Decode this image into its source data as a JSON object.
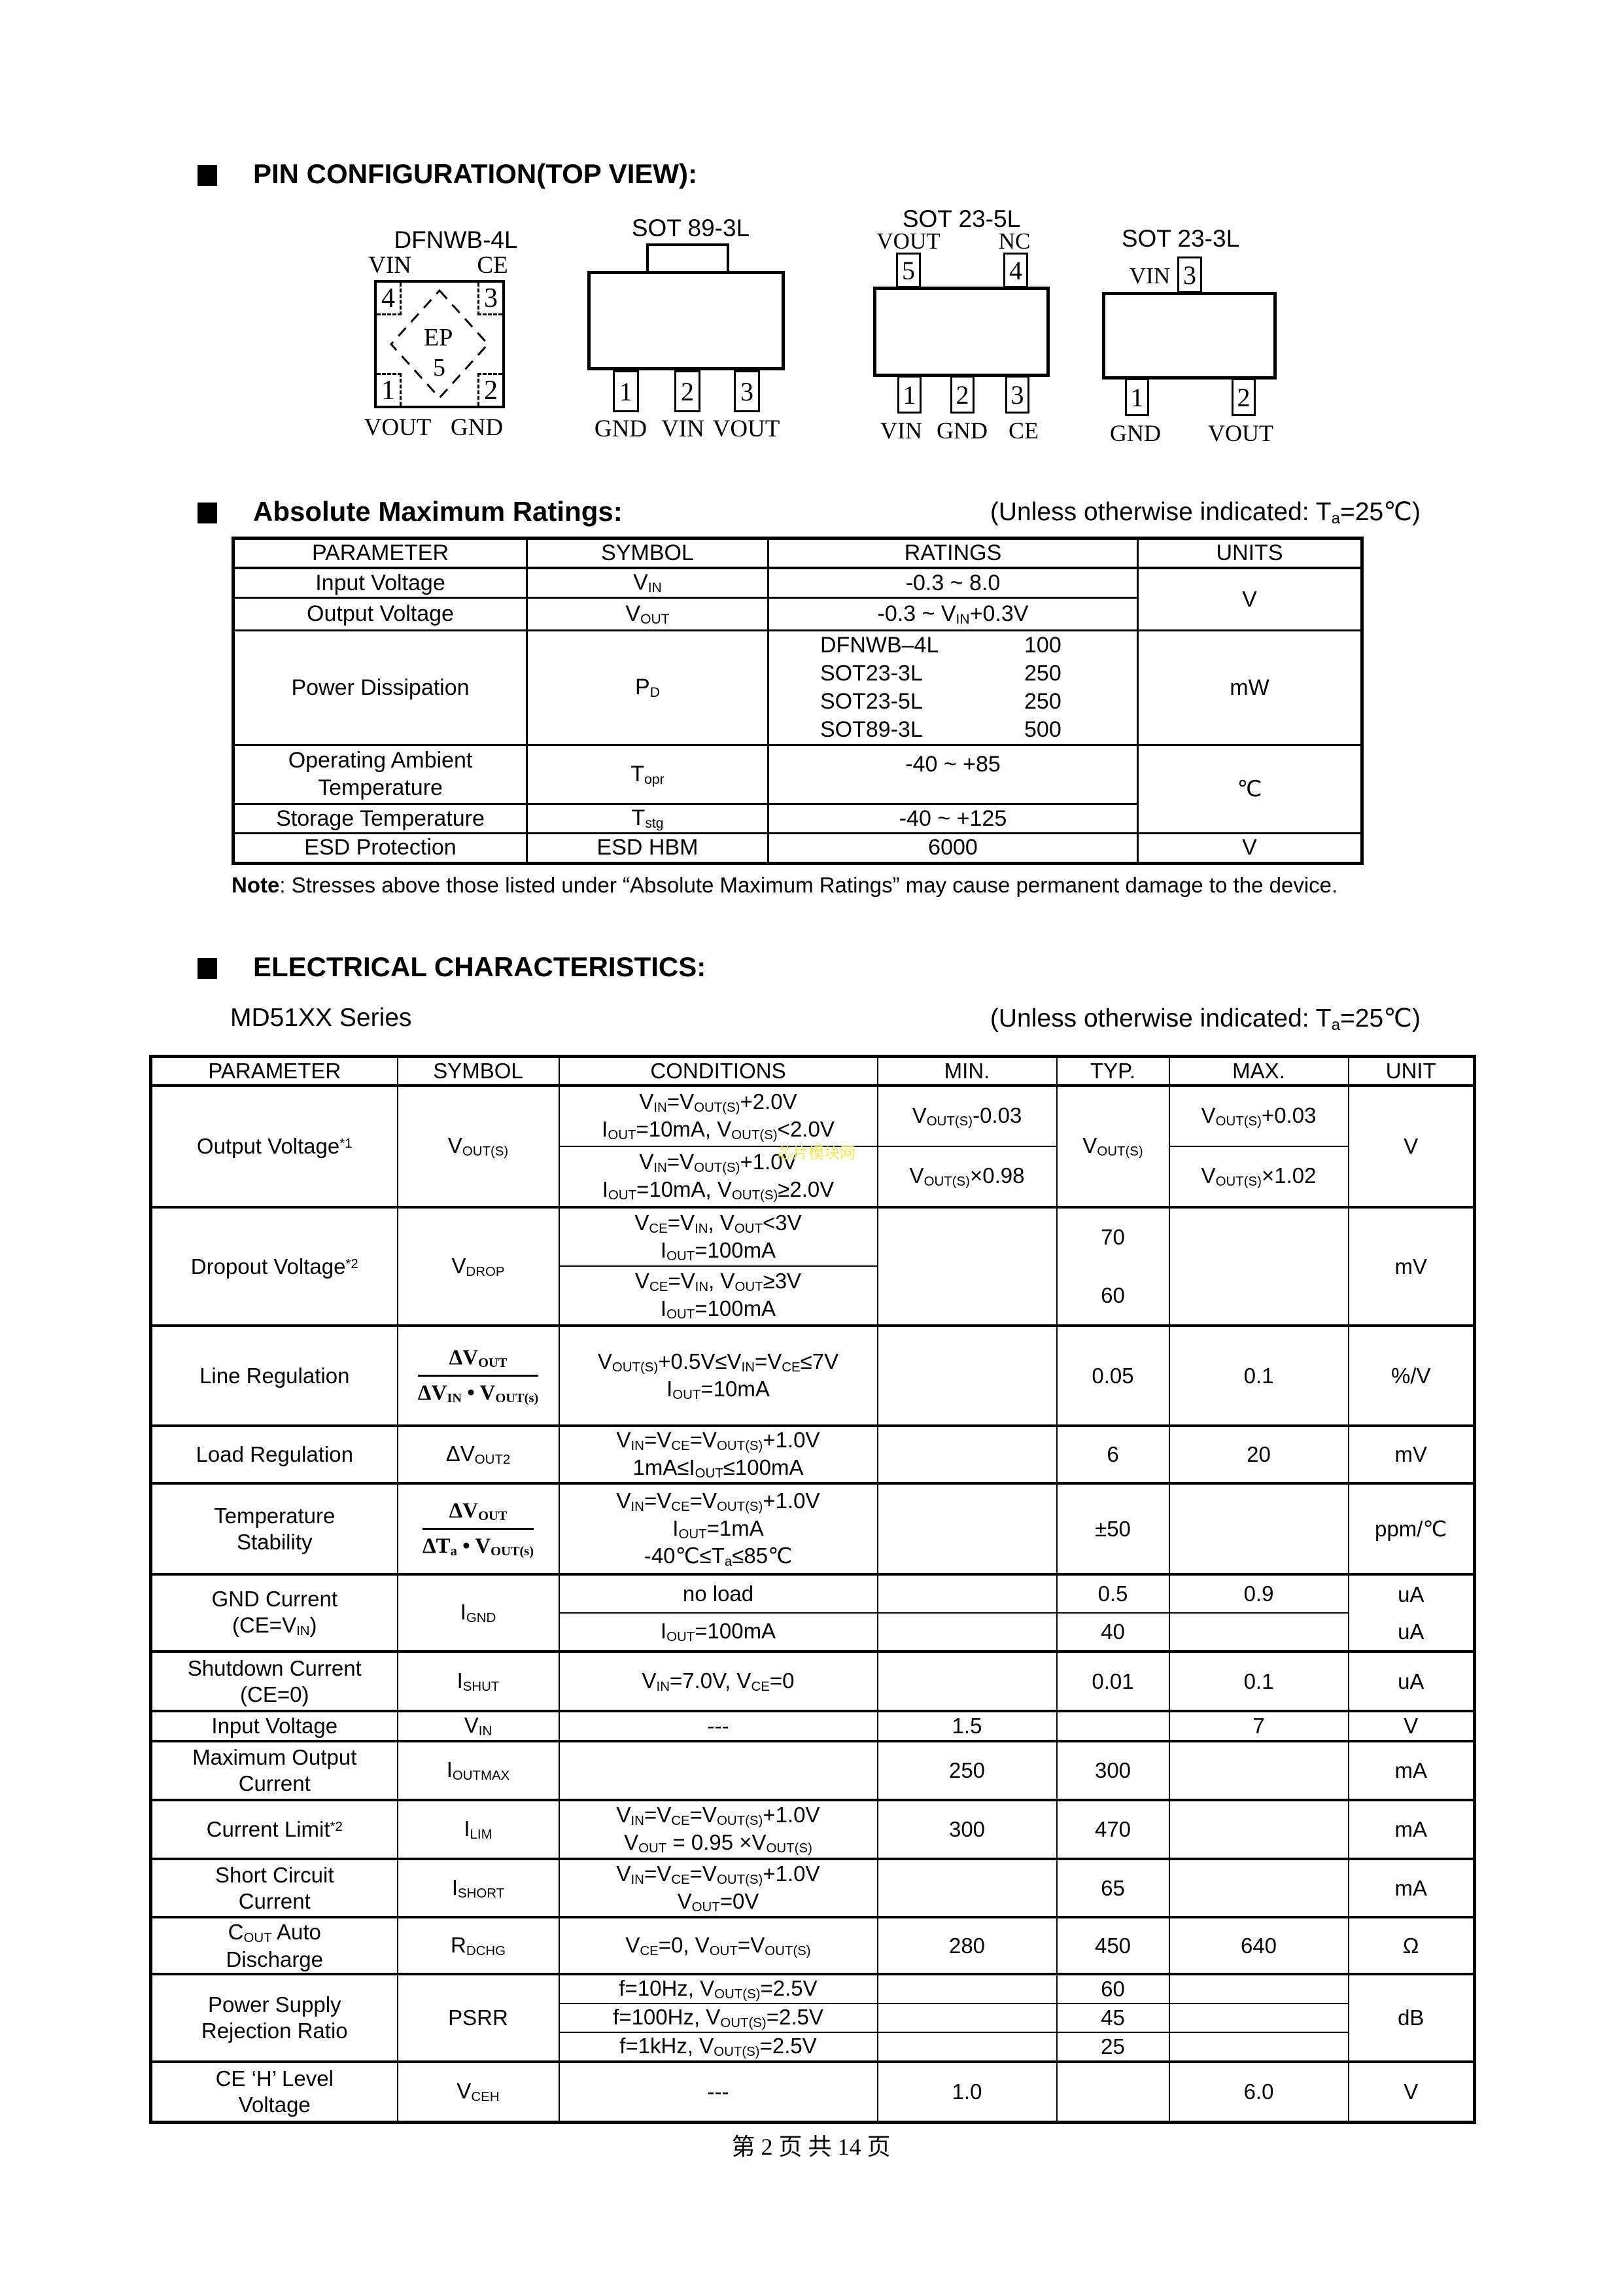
{
  "pin_config": {
    "heading": "PIN CONFIGURATION(TOP VIEW):",
    "dfnwb": {
      "title": "DFNWB-4L",
      "top_left_label": "VIN",
      "top_right_label": "CE",
      "bottom_left_label": "VOUT",
      "bottom_right_label": "GND",
      "pin_tl": "4",
      "pin_tr": "3",
      "pin_bl": "1",
      "pin_br": "2",
      "ep_label": "EP",
      "ep_pin": "5"
    },
    "sot89": {
      "title": "SOT 89-3L",
      "pins": [
        {
          "num": "1",
          "label": "GND"
        },
        {
          "num": "2",
          "label": "VIN"
        },
        {
          "num": "3",
          "label": "VOUT"
        }
      ]
    },
    "sot235": {
      "title": "SOT 23-5L",
      "top_pins": [
        {
          "num": "5",
          "label": "VOUT"
        },
        {
          "num": "4",
          "label": "NC"
        }
      ],
      "bottom_pins": [
        {
          "num": "1",
          "label": "VIN"
        },
        {
          "num": "2",
          "label": "GND"
        },
        {
          "num": "3",
          "label": "CE"
        }
      ]
    },
    "sot233": {
      "title": "SOT 23-3L",
      "top_pins": [
        {
          "num": "3",
          "label": "VIN"
        }
      ],
      "bottom_pins": [
        {
          "num": "1",
          "label": "GND"
        },
        {
          "num": "2",
          "label": "VOUT"
        }
      ]
    }
  },
  "abs_max": {
    "heading": "Absolute Maximum Ratings:",
    "condition": "(Unless otherwise indicated: T_{a}=25℃)",
    "headers": [
      "PARAMETER",
      "SYMBOL",
      "RATINGS",
      "UNITS"
    ],
    "input_voltage": {
      "param": "Input Voltage",
      "symbol": "V_{IN}",
      "rating": "-0.3 ~ 8.0"
    },
    "output_voltage": {
      "param": "Output Voltage",
      "symbol": "V_{OUT}",
      "rating": "-0.3 ~ V_{IN}+0.3V"
    },
    "voltage_unit": "V",
    "power_dissipation": {
      "param": "Power Dissipation",
      "symbol": "P_{D}",
      "unit": "mW",
      "ratings": [
        {
          "pkg": "DFNWB–4L",
          "val": "100"
        },
        {
          "pkg": "SOT23-3L",
          "val": "250"
        },
        {
          "pkg": "SOT23-5L",
          "val": "250"
        },
        {
          "pkg": "SOT89-3L",
          "val": "500"
        }
      ]
    },
    "operating_temp": {
      "param": "Operating Ambient\nTemperature",
      "symbol": "T_{opr}",
      "rating": "-40 ~ +85"
    },
    "storage_temp": {
      "param": "Storage Temperature",
      "symbol": "T_{stg}",
      "rating": "-40 ~ +125"
    },
    "temp_unit": "℃",
    "esd": {
      "param": "ESD Protection",
      "symbol": "ESD HBM",
      "rating": "6000",
      "unit": "V"
    },
    "note_label": "Note",
    "note_text": ": Stresses above those listed under “Absolute Maximum Ratings” may cause permanent damage to the device."
  },
  "elec_char": {
    "heading": "ELECTRICAL CHARACTERISTICS:",
    "series": "MD51XX Series",
    "condition": "(Unless otherwise indicated: T_{a}=25℃)",
    "headers": [
      "PARAMETER",
      "SYMBOL",
      "CONDITIONS",
      "MIN.",
      "TYP.",
      "MAX.",
      "UNIT"
    ],
    "output_voltage": {
      "param": "Output Voltage^{*1}",
      "symbol": "V_{OUT(S)}",
      "typ": "V_{OUT(S)}",
      "unit": "V",
      "sub": [
        {
          "cond": "V_{IN}=V_{OUT(S)}+2.0V\nI_{OUT}=10mA, V_{OUT(S)}<2.0V",
          "min": "V_{OUT(S)}-0.03",
          "max": "V_{OUT(S)}+0.03"
        },
        {
          "cond": "V_{IN}=V_{OUT(S)}+1.0V\nI_{OUT}=10mA, V_{OUT(S)}≥2.0V",
          "min": "V_{OUT(S)}×0.98",
          "max": "V_{OUT(S)}×1.02"
        }
      ]
    },
    "dropout_voltage": {
      "param": "Dropout Voltage^{*2}",
      "symbol": "V_{DROP}",
      "unit": "mV",
      "sub": [
        {
          "cond": "V_{CE}=V_{IN}, V_{OUT}<3V\nI_{OUT}=100mA",
          "typ": "70"
        },
        {
          "cond": "V_{CE}=V_{IN}, V_{OUT}≥3V\nI_{OUT}=100mA",
          "typ": "60"
        }
      ]
    },
    "line_regulation": {
      "param": "Line Regulation",
      "symbol_num": "ΔV_{OUT}",
      "symbol_den": "ΔV_{IN} • V_{OUT(s)}",
      "cond": "V_{OUT(S)}+0.5V≤V_{IN}=V_{CE}≤7V\nI_{OUT}=10mA",
      "typ": "0.05",
      "max": "0.1",
      "unit": "%/V"
    },
    "load_regulation": {
      "param": "Load Regulation",
      "symbol": "ΔV_{OUT2}",
      "cond": "V_{IN}=V_{CE}=V_{OUT(S)}+1.0V\n1mA≤I_{OUT}≤100mA",
      "typ": "6",
      "max": "20",
      "unit": "mV"
    },
    "temp_stability": {
      "param": "Temperature\nStability",
      "symbol_num": "ΔV_{OUT}",
      "symbol_den": "ΔT_{a} • V_{OUT(s)}",
      "cond": "V_{IN}=V_{CE}=V_{OUT(S)}+1.0V\nI_{OUT}=1mA\n-40℃≤T_{a}≤85℃",
      "typ": "±50",
      "unit": "ppm/℃"
    },
    "gnd_current": {
      "param": "GND Current\n(CE=V_{IN})",
      "symbol": "I_{GND}",
      "sub": [
        {
          "cond": "no load",
          "typ": "0.5",
          "max": "0.9",
          "unit": "uA"
        },
        {
          "cond": "I_{OUT}=100mA",
          "typ": "40",
          "unit": "uA"
        }
      ]
    },
    "shutdown_current": {
      "param": "Shutdown Current\n(CE=0)",
      "symbol": "I_{SHUT}",
      "cond": "V_{IN}=7.0V, V_{CE}=0",
      "typ": "0.01",
      "max": "0.1",
      "unit": "uA"
    },
    "input_voltage": {
      "param": "Input Voltage",
      "symbol": "V_{IN}",
      "cond": "---",
      "min": "1.5",
      "max": "7",
      "unit": "V"
    },
    "max_output_current": {
      "param": "Maximum Output\nCurrent",
      "symbol": "I_{OUTMAX}",
      "cond": "",
      "min": "250",
      "typ": "300",
      "unit": "mA"
    },
    "current_limit": {
      "param": "Current Limit^{*2}",
      "symbol": "I_{LIM}",
      "cond": "V_{IN}=V_{CE}=V_{OUT(S)}+1.0V\nV_{OUT} = 0.95 ×V_{OUT(S)}",
      "min": "300",
      "typ": "470",
      "unit": "mA"
    },
    "short_circuit": {
      "param": "Short Circuit\nCurrent",
      "symbol": "I_{SHORT}",
      "cond": "V_{IN}=V_{CE}=V_{OUT(S)}+1.0V\nV_{OUT}=0V",
      "typ": "65",
      "unit": "mA"
    },
    "cout_discharge": {
      "param": "C_{OUT} Auto\nDischarge",
      "symbol": "R_{DCHG}",
      "cond": "V_{CE}=0, V_{OUT}=V_{OUT(S)}",
      "min": "280",
      "typ": "450",
      "max": "640",
      "unit": "Ω"
    },
    "psrr": {
      "param": "Power Supply\nRejection Ratio",
      "symbol": "PSRR",
      "unit": "dB",
      "sub": [
        {
          "cond": "f=10Hz, V_{OUT(S)}=2.5V",
          "typ": "60"
        },
        {
          "cond": "f=100Hz, V_{OUT(S)}=2.5V",
          "typ": "45"
        },
        {
          "cond": "f=1kHz, V_{OUT(S)}=2.5V",
          "typ": "25"
        }
      ]
    },
    "ce_h": {
      "param": "CE ‘H’ Level\nVoltage",
      "symbol": "V_{CEH}",
      "cond": "---",
      "min": "1.0",
      "max": "6.0",
      "unit": "V"
    }
  },
  "watermark": "芯片模块网",
  "footer": "第 2 页 共 14 页"
}
